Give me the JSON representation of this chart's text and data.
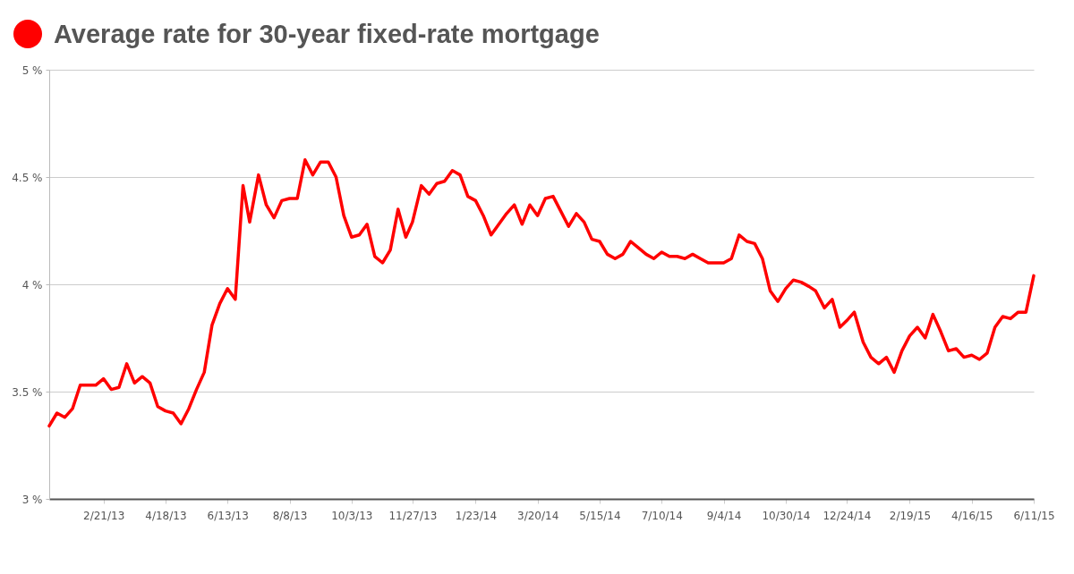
{
  "chart_data": {
    "type": "line",
    "title": "Average rate for 30-year fixed-rate mortgage",
    "x": [
      "2013-01-03",
      "2013-01-10",
      "2013-01-17",
      "2013-01-24",
      "2013-01-31",
      "2013-02-07",
      "2013-02-14",
      "2013-02-21",
      "2013-02-28",
      "2013-03-07",
      "2013-03-14",
      "2013-03-21",
      "2013-03-28",
      "2013-04-04",
      "2013-04-11",
      "2013-04-18",
      "2013-04-25",
      "2013-05-02",
      "2013-05-09",
      "2013-05-16",
      "2013-05-23",
      "2013-05-30",
      "2013-06-06",
      "2013-06-13",
      "2013-06-20",
      "2013-06-27",
      "2013-07-03",
      "2013-07-11",
      "2013-07-18",
      "2013-07-25",
      "2013-08-01",
      "2013-08-08",
      "2013-08-15",
      "2013-08-22",
      "2013-08-29",
      "2013-09-05",
      "2013-09-12",
      "2013-09-19",
      "2013-09-26",
      "2013-10-03",
      "2013-10-10",
      "2013-10-17",
      "2013-10-24",
      "2013-10-31",
      "2013-11-07",
      "2013-11-14",
      "2013-11-21",
      "2013-11-27",
      "2013-12-05",
      "2013-12-12",
      "2013-12-19",
      "2013-12-26",
      "2014-01-02",
      "2014-01-09",
      "2014-01-16",
      "2014-01-23",
      "2014-01-30",
      "2014-02-06",
      "2014-02-13",
      "2014-02-20",
      "2014-02-27",
      "2014-03-06",
      "2014-03-13",
      "2014-03-20",
      "2014-03-27",
      "2014-04-03",
      "2014-04-10",
      "2014-04-17",
      "2014-04-24",
      "2014-05-01",
      "2014-05-08",
      "2014-05-15",
      "2014-05-22",
      "2014-05-29",
      "2014-06-05",
      "2014-06-12",
      "2014-06-19",
      "2014-06-26",
      "2014-07-03",
      "2014-07-10",
      "2014-07-17",
      "2014-07-24",
      "2014-07-31",
      "2014-08-07",
      "2014-08-14",
      "2014-08-21",
      "2014-08-28",
      "2014-09-04",
      "2014-09-11",
      "2014-09-18",
      "2014-09-25",
      "2014-10-02",
      "2014-10-09",
      "2014-10-16",
      "2014-10-23",
      "2014-10-30",
      "2014-11-06",
      "2014-11-13",
      "2014-11-20",
      "2014-11-26",
      "2014-12-04",
      "2014-12-11",
      "2014-12-18",
      "2014-12-24",
      "2014-12-31",
      "2015-01-08",
      "2015-01-15",
      "2015-01-22",
      "2015-01-29",
      "2015-02-05",
      "2015-02-12",
      "2015-02-19",
      "2015-02-26",
      "2015-03-05",
      "2015-03-12",
      "2015-03-19",
      "2015-03-26",
      "2015-04-02",
      "2015-04-09",
      "2015-04-16",
      "2015-04-23",
      "2015-04-30",
      "2015-05-07",
      "2015-05-14",
      "2015-05-21",
      "2015-05-28",
      "2015-06-04",
      "2015-06-11"
    ],
    "series": [
      {
        "color": "#ff0000",
        "values": [
          3.34,
          3.4,
          3.38,
          3.42,
          3.53,
          3.53,
          3.53,
          3.56,
          3.51,
          3.52,
          3.63,
          3.54,
          3.57,
          3.54,
          3.43,
          3.41,
          3.4,
          3.35,
          3.42,
          3.51,
          3.59,
          3.81,
          3.91,
          3.98,
          3.93,
          4.46,
          4.29,
          4.51,
          4.37,
          4.31,
          4.39,
          4.4,
          4.4,
          4.58,
          4.51,
          4.57,
          4.57,
          4.5,
          4.32,
          4.22,
          4.23,
          4.28,
          4.13,
          4.1,
          4.16,
          4.35,
          4.22,
          4.29,
          4.46,
          4.42,
          4.47,
          4.48,
          4.53,
          4.51,
          4.41,
          4.39,
          4.32,
          4.23,
          4.28,
          4.33,
          4.37,
          4.28,
          4.37,
          4.32,
          4.4,
          4.41,
          4.34,
          4.27,
          4.33,
          4.29,
          4.21,
          4.2,
          4.14,
          4.12,
          4.14,
          4.2,
          4.17,
          4.14,
          4.12,
          4.15,
          4.13,
          4.13,
          4.12,
          4.14,
          4.12,
          4.1,
          4.1,
          4.1,
          4.12,
          4.23,
          4.2,
          4.19,
          4.12,
          3.97,
          3.92,
          3.98,
          4.02,
          4.01,
          3.99,
          3.97,
          3.89,
          3.93,
          3.8,
          3.83,
          3.87,
          3.73,
          3.66,
          3.63,
          3.66,
          3.59,
          3.69,
          3.76,
          3.8,
          3.75,
          3.86,
          3.78,
          3.69,
          3.7,
          3.66,
          3.67,
          3.65,
          3.68,
          3.8,
          3.85,
          3.84,
          3.87,
          3.87,
          4.04
        ]
      }
    ],
    "xlim": [
      "2013-01-03",
      "2015-06-11"
    ],
    "xticks": [
      {
        "value": "2013-02-21",
        "label": "2/21/13"
      },
      {
        "value": "2013-04-18",
        "label": "4/18/13"
      },
      {
        "value": "2013-06-13",
        "label": "6/13/13"
      },
      {
        "value": "2013-08-08",
        "label": "8/8/13"
      },
      {
        "value": "2013-10-03",
        "label": "10/3/13"
      },
      {
        "value": "2013-11-27",
        "label": "11/27/13"
      },
      {
        "value": "2014-01-23",
        "label": "1/23/14"
      },
      {
        "value": "2014-03-20",
        "label": "3/20/14"
      },
      {
        "value": "2014-05-15",
        "label": "5/15/14"
      },
      {
        "value": "2014-07-10",
        "label": "7/10/14"
      },
      {
        "value": "2014-09-04",
        "label": "9/4/14"
      },
      {
        "value": "2014-10-30",
        "label": "10/30/14"
      },
      {
        "value": "2014-12-24",
        "label": "12/24/14"
      },
      {
        "value": "2015-02-19",
        "label": "2/19/15"
      },
      {
        "value": "2015-04-16",
        "label": "4/16/15"
      },
      {
        "value": "2015-06-11",
        "label": "6/11/15"
      }
    ],
    "ylim": [
      3,
      5
    ],
    "yticks": [
      {
        "value": 3,
        "label": "3 %"
      },
      {
        "value": 3.5,
        "label": "3.5 %"
      },
      {
        "value": 4,
        "label": "4 %"
      },
      {
        "value": 4.5,
        "label": "4.5 %"
      },
      {
        "value": 5,
        "label": "5 %"
      }
    ],
    "grid": "y",
    "line_style": "solid",
    "marker": "none"
  }
}
